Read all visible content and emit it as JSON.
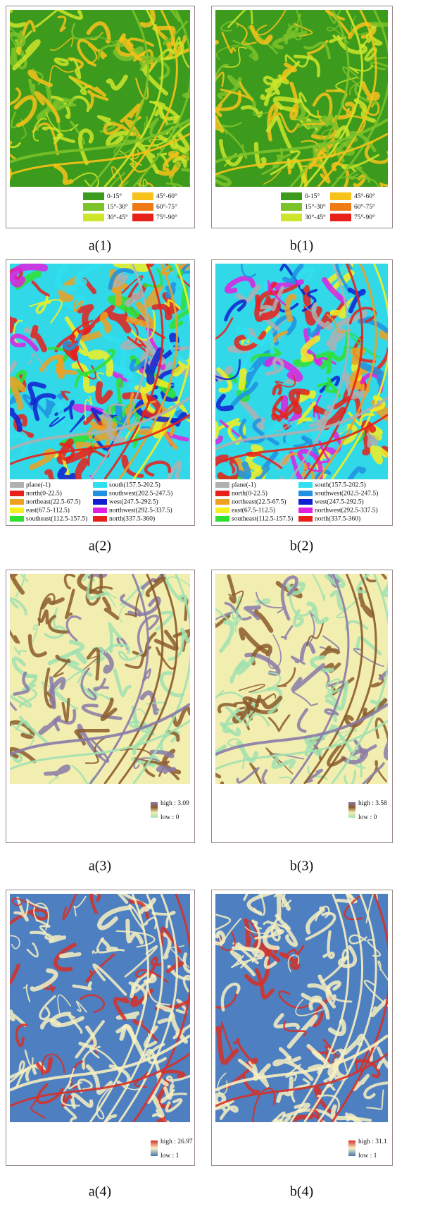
{
  "panels": [
    {
      "caption": "a(1)",
      "legend": [
        {
          "label": "0-15°",
          "color": "#3c9a1c"
        },
        {
          "label": "15°-30°",
          "color": "#7cc22a"
        },
        {
          "label": "30°-45°",
          "color": "#cde52a"
        },
        {
          "label": "45°-60°",
          "color": "#f7c21a"
        },
        {
          "label": "60°-75°",
          "color": "#f07a16"
        },
        {
          "label": "75°-90°",
          "color": "#e8201a"
        }
      ]
    },
    {
      "caption": "b(1)",
      "legend": [
        {
          "label": "0-15°",
          "color": "#3c9a1c"
        },
        {
          "label": "15°-30°",
          "color": "#7cc22a"
        },
        {
          "label": "30°-45°",
          "color": "#cde52a"
        },
        {
          "label": "45°-60°",
          "color": "#f7c21a"
        },
        {
          "label": "60°-75°",
          "color": "#f07a16"
        },
        {
          "label": "75°-90°",
          "color": "#e8201a"
        }
      ]
    },
    {
      "caption": "a(2)",
      "legend": [
        {
          "label": "plane(-1)",
          "color": "#b0b0b0"
        },
        {
          "label": "north(0-22.5)",
          "color": "#e8201a"
        },
        {
          "label": "northeast(22.5-67.5)",
          "color": "#f0a020"
        },
        {
          "label": "east(67.5-112.5)",
          "color": "#f4f020"
        },
        {
          "label": "southeast(112.5-157.5)",
          "color": "#30e030"
        },
        {
          "label": "south(157.5-202.5)",
          "color": "#30e0f0"
        },
        {
          "label": "southwest(202.5-247.5)",
          "color": "#2090e0"
        },
        {
          "label": "west(247.5-292.5)",
          "color": "#1020d0"
        },
        {
          "label": "northwest(292.5-337.5)",
          "color": "#e020e0"
        },
        {
          "label": "north(337.5-360)",
          "color": "#e8201a"
        }
      ]
    },
    {
      "caption": "b(2)",
      "legend": [
        {
          "label": "plane(-1)",
          "color": "#b0b0b0"
        },
        {
          "label": "north(0-22.5)",
          "color": "#e8201a"
        },
        {
          "label": "northeast(22.5-67.5)",
          "color": "#f0a020"
        },
        {
          "label": "east(67.5-112.5)",
          "color": "#f4f020"
        },
        {
          "label": "southeast(112.5-157.5)",
          "color": "#30e030"
        },
        {
          "label": "south(157.5-202.5)",
          "color": "#30e0f0"
        },
        {
          "label": "southwest(202.5-247.5)",
          "color": "#2090e0"
        },
        {
          "label": "west(247.5-292.5)",
          "color": "#1020d0"
        },
        {
          "label": "northwest(292.5-337.5)",
          "color": "#e020e0"
        },
        {
          "label": "north(337.5-360)",
          "color": "#e8201a"
        }
      ]
    },
    {
      "caption": "a(3)",
      "ramp": {
        "high": "high : 3.09",
        "low": "low : 0",
        "colors": [
          "#8a7aa8",
          "#8b5a2b",
          "#f2eeb0",
          "#a0e0b0"
        ]
      }
    },
    {
      "caption": "b(3)",
      "ramp": {
        "high": "high : 3.58",
        "low": "low : 0",
        "colors": [
          "#8a7aa8",
          "#8b5a2b",
          "#f2eeb0",
          "#a0e0b0"
        ]
      }
    },
    {
      "caption": "a(4)",
      "ramp": {
        "high": "high : 26.97",
        "low": "low : 1",
        "colors": [
          "#d73027",
          "#f7f0c0",
          "#4575b4"
        ]
      }
    },
    {
      "caption": "b(4)",
      "ramp": {
        "high": "high : 31.1",
        "low": "low : 1",
        "colors": [
          "#d73027",
          "#f7f0c0",
          "#4575b4"
        ]
      }
    }
  ]
}
